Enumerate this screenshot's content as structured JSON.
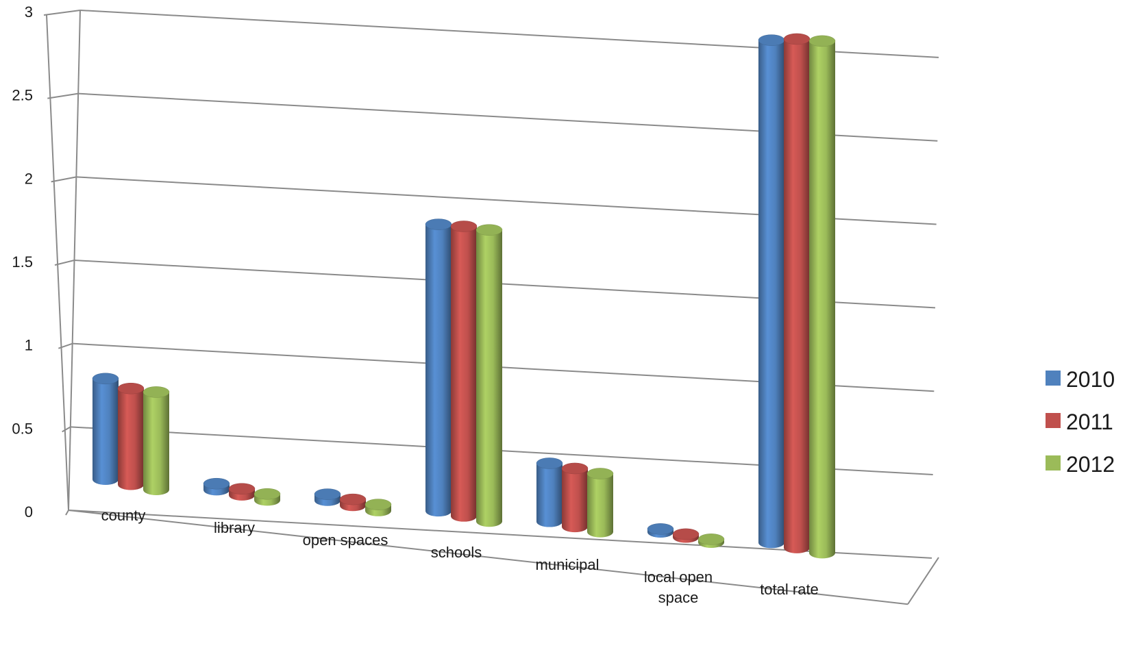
{
  "chart_data": {
    "type": "bar",
    "style": "3d-cylinder",
    "categories": [
      "county",
      "library",
      "open spaces",
      "schools",
      "municipal",
      "local open\nspace",
      "total rate"
    ],
    "series": [
      {
        "name": "2010",
        "color": "#4f81bd",
        "values": [
          0.64,
          0.04,
          0.04,
          1.82,
          0.37,
          0.02,
          3.19
        ]
      },
      {
        "name": "2011",
        "color": "#c0504d",
        "values": [
          0.61,
          0.04,
          0.04,
          1.84,
          0.37,
          0.02,
          3.23
        ]
      },
      {
        "name": "2012",
        "color": "#9bbb59",
        "values": [
          0.62,
          0.04,
          0.04,
          1.85,
          0.37,
          0.02,
          3.25
        ]
      }
    ],
    "ylim": [
      0,
      3
    ],
    "yticks": [
      "0",
      "0.5",
      "1",
      "1.5",
      "2",
      "2.5",
      "3"
    ],
    "grid": true,
    "legend_position": "right"
  }
}
